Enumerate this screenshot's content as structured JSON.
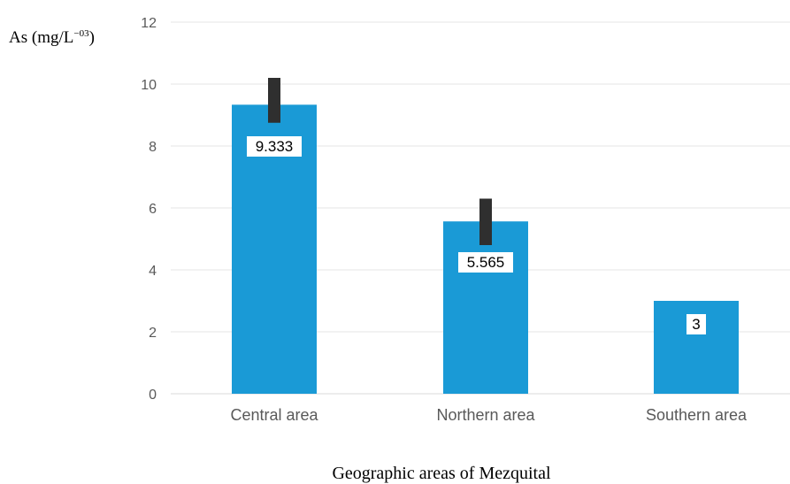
{
  "chart_data": {
    "type": "bar",
    "categories": [
      "Central area",
      "Northern area",
      "Southern area"
    ],
    "series": [
      {
        "values": [
          9.333,
          5.565,
          3
        ],
        "data_labels": [
          "9.333",
          "5.565",
          "3"
        ],
        "error_low": [
          8.75,
          4.8,
          null
        ],
        "error_high": [
          10.2,
          6.3,
          null
        ]
      }
    ],
    "ylabel_main": "As (mg/L",
    "ylabel_sup": "−03",
    "ylabel_close": ")",
    "xlabel": "Geographic areas of Mezquital",
    "ylim": [
      0,
      12
    ],
    "yticks": [
      "0",
      "2",
      "4",
      "6",
      "8",
      "10",
      "12"
    ],
    "grid": true,
    "legend": "none",
    "colors": {
      "bar": "#1a9ad6",
      "error_bar": "#2f2f2f",
      "grid": "#e6e6e6",
      "axis": "#d9d9d9"
    }
  }
}
